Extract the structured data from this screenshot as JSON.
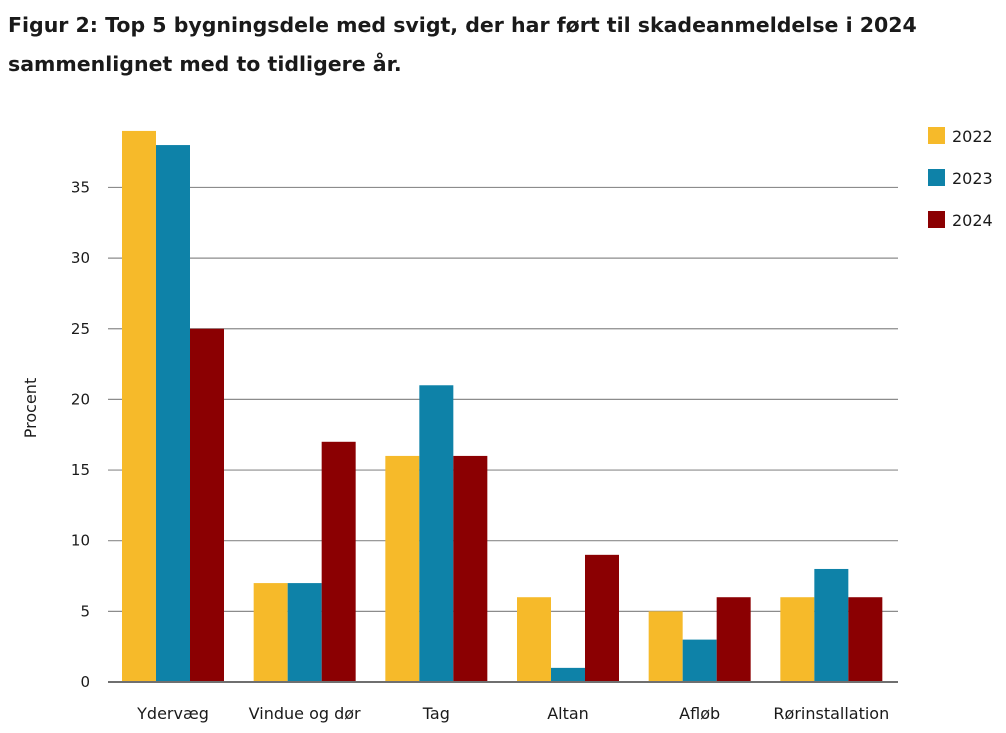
{
  "chart_data": {
    "type": "bar",
    "title_line1": "Figur 2: Top 5 bygningsdele med svigt, der har ført til skadeanmeldelse i 2024",
    "title_line2": "sammenlignet med to tidligere år.",
    "ylabel": "Procent",
    "xlabel": "",
    "categories": [
      "Ydervæg",
      "Vindue og dør",
      "Tag",
      "Altan",
      "Afløb",
      "Rørinstallation"
    ],
    "series": [
      {
        "name": "2022",
        "color": "#F6BA2A",
        "values": [
          39,
          7,
          16,
          6,
          5,
          6
        ]
      },
      {
        "name": "2023",
        "color": "#0E82A8",
        "values": [
          38,
          7,
          21,
          1,
          3,
          8
        ]
      },
      {
        "name": "2024",
        "color": "#8B0002",
        "values": [
          25,
          17,
          16,
          9,
          6,
          6
        ]
      }
    ],
    "yticks": [
      "0",
      "5",
      "10",
      "15",
      "20",
      "25",
      "30",
      "35"
    ],
    "ylim": [
      0,
      39
    ],
    "grid": true,
    "legend": "top-right"
  }
}
